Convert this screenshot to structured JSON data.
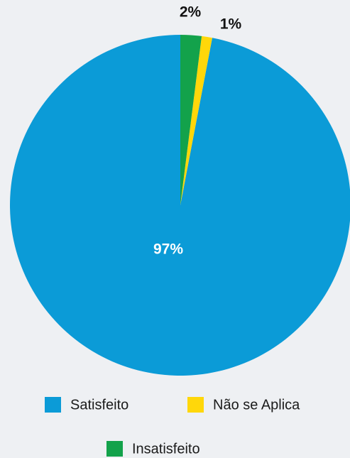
{
  "chart_data": {
    "type": "pie",
    "categories": [
      "Satisfeito",
      "Não se Aplica",
      "Insatisfeito"
    ],
    "values": [
      97,
      1,
      2
    ],
    "value_labels": [
      "97%",
      "1%",
      "2%"
    ],
    "colors": [
      "#0b9bd7",
      "#ffd70a",
      "#13a24b"
    ],
    "legend": true
  }
}
